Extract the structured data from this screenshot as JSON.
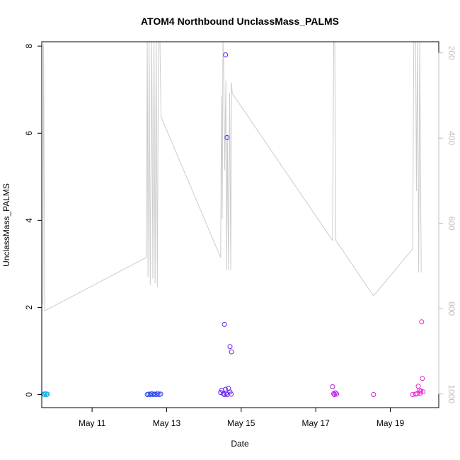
{
  "chart_data": {
    "type": "scatter",
    "title": "ATOM4 Northbound UnclassMass_PALMS",
    "xlabel": "Date",
    "ylabel": "UnclassMass_PALMS",
    "x_unit": "days (May 2016, day of month)",
    "xlim": [
      9.65,
      20.3
    ],
    "ylim": [
      -0.3,
      8.1
    ],
    "y_ticks": [
      0,
      2,
      4,
      6,
      8
    ],
    "y_tick_labels": [
      "0",
      "2",
      "4",
      "6",
      "8"
    ],
    "x_ticks": [
      11,
      13,
      15,
      17,
      19
    ],
    "x_tick_labels": [
      "May 11",
      "May 13",
      "May 15",
      "May 17",
      "May 19"
    ],
    "y2lim": [
      1032,
      174
    ],
    "y2_ticks": [
      200,
      400,
      600,
      800,
      1000
    ],
    "y2_tick_labels": [
      "200",
      "400",
      "600",
      "800",
      "1000"
    ],
    "y2_reversed": true,
    "grid": false,
    "series": [
      {
        "role": "scatter",
        "marker": "open-circle",
        "color_gradient": [
          "#0bb3f0",
          "#1f4cf0",
          "#6a1cf0",
          "#b31ce0",
          "#f01ccc"
        ],
        "points": [
          [
            9.7,
            0.01
          ],
          [
            9.72,
            0.0
          ],
          [
            9.75,
            0.02
          ],
          [
            9.78,
            0.0
          ],
          [
            9.8,
            0.01
          ],
          [
            12.48,
            0.0
          ],
          [
            12.52,
            0.01
          ],
          [
            12.56,
            0.0
          ],
          [
            12.6,
            0.02
          ],
          [
            12.64,
            0.0
          ],
          [
            12.68,
            0.01
          ],
          [
            12.72,
            0.0
          ],
          [
            12.76,
            0.03
          ],
          [
            12.8,
            0.0
          ],
          [
            12.84,
            0.01
          ],
          [
            14.45,
            0.05
          ],
          [
            14.48,
            0.1
          ],
          [
            14.52,
            0.02
          ],
          [
            14.55,
            0.0
          ],
          [
            14.58,
            0.12
          ],
          [
            14.6,
            0.03
          ],
          [
            14.63,
            0.0
          ],
          [
            14.66,
            0.14
          ],
          [
            14.7,
            0.06
          ],
          [
            14.73,
            0.01
          ],
          [
            14.55,
            1.61
          ],
          [
            14.58,
            7.8
          ],
          [
            14.62,
            5.9
          ],
          [
            14.7,
            1.1
          ],
          [
            14.74,
            0.98
          ],
          [
            17.45,
            0.18
          ],
          [
            17.48,
            0.02
          ],
          [
            17.5,
            0.0
          ],
          [
            17.53,
            0.04
          ],
          [
            17.56,
            0.01
          ],
          [
            18.55,
            0.0
          ],
          [
            19.6,
            0.0
          ],
          [
            19.68,
            0.01
          ],
          [
            19.72,
            0.02
          ],
          [
            19.75,
            0.19
          ],
          [
            19.78,
            0.1
          ],
          [
            19.8,
            0.03
          ],
          [
            19.82,
            0.08
          ],
          [
            19.84,
            1.67
          ],
          [
            19.86,
            0.37
          ],
          [
            19.88,
            0.06
          ]
        ]
      },
      {
        "role": "line",
        "axis": "right",
        "color": "#cccccc",
        "points": [
          [
            9.68,
            790
          ],
          [
            9.7,
            180
          ],
          [
            9.73,
            805
          ],
          [
            12.45,
            680
          ],
          [
            12.48,
            174
          ],
          [
            12.5,
            725
          ],
          [
            12.53,
            174
          ],
          [
            12.56,
            745
          ],
          [
            12.6,
            174
          ],
          [
            12.63,
            730
          ],
          [
            12.66,
            174
          ],
          [
            12.69,
            740
          ],
          [
            12.72,
            174
          ],
          [
            12.75,
            750
          ],
          [
            12.78,
            174
          ],
          [
            12.82,
            174
          ],
          [
            12.85,
            350
          ],
          [
            14.45,
            680
          ],
          [
            14.47,
            300
          ],
          [
            14.49,
            590
          ],
          [
            14.51,
            174
          ],
          [
            14.53,
            230
          ],
          [
            14.56,
            475
          ],
          [
            14.59,
            265
          ],
          [
            14.61,
            710
          ],
          [
            14.63,
            390
          ],
          [
            14.66,
            710
          ],
          [
            14.69,
            295
          ],
          [
            14.72,
            710
          ],
          [
            14.74,
            270
          ],
          [
            14.76,
            295
          ],
          [
            17.45,
            640
          ],
          [
            17.48,
            174
          ],
          [
            17.51,
            174
          ],
          [
            17.54,
            640
          ],
          [
            18.55,
            770
          ],
          [
            19.6,
            660
          ],
          [
            19.63,
            174
          ],
          [
            19.68,
            174
          ],
          [
            19.7,
            524
          ],
          [
            19.73,
            174
          ],
          [
            19.76,
            715
          ],
          [
            19.79,
            174
          ],
          [
            19.83,
            715
          ]
        ]
      }
    ]
  }
}
